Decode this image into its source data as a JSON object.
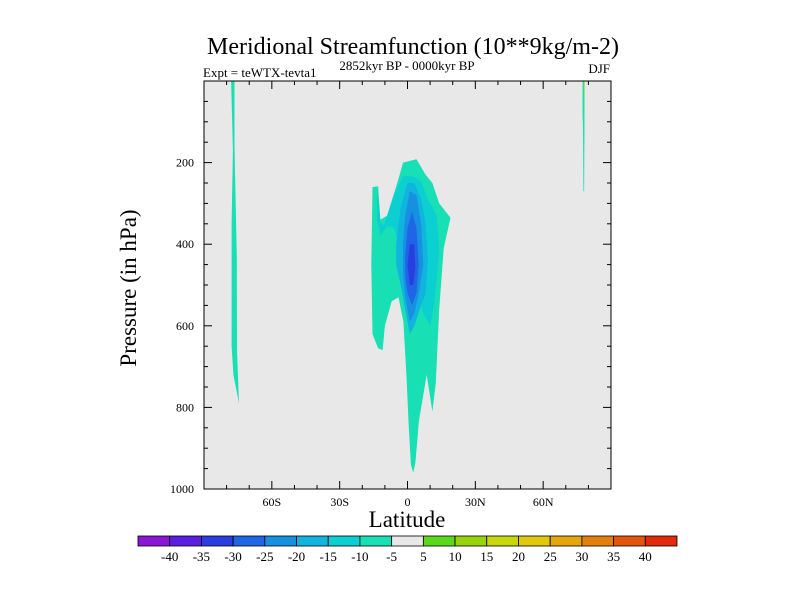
{
  "chart_data": {
    "type": "contour",
    "title": "Meridional Streamfunction (10**9kg/m-2)",
    "subtitle_left": "Expt = teWTX-tevta1",
    "subtitle_center": "2852kyr BP - 0000kyr BP",
    "subtitle_right": "DJF",
    "xlabel": "Latitude",
    "ylabel": "Pressure (in hPa)",
    "xlim": [
      -90,
      90
    ],
    "ylim": [
      0,
      1000
    ],
    "y_inverted": true,
    "x_ticks": [
      {
        "value": -60,
        "label": "60S"
      },
      {
        "value": -30,
        "label": "30S"
      },
      {
        "value": 0,
        "label": "0"
      },
      {
        "value": 30,
        "label": "30N"
      },
      {
        "value": 60,
        "label": "60N"
      }
    ],
    "y_ticks": [
      {
        "value": 200,
        "label": "200"
      },
      {
        "value": 400,
        "label": "400"
      },
      {
        "value": 600,
        "label": "600"
      },
      {
        "value": 800,
        "label": "800"
      },
      {
        "value": 1000,
        "label": "1000"
      }
    ],
    "background_color": "#e8e8e8",
    "colorbar": {
      "labels": [
        "-40",
        "-35",
        "-30",
        "-25",
        "-20",
        "-15",
        "-10",
        "-5",
        "5",
        "10",
        "15",
        "20",
        "25",
        "30",
        "35",
        "40"
      ],
      "colors": [
        "#8a17d6",
        "#5a1fe0",
        "#2a3ee0",
        "#1f66e6",
        "#1890e2",
        "#10b4de",
        "#0ccfd2",
        "#18e0b4",
        "#e8e8e8",
        "#5cd81c",
        "#98d40e",
        "#c8d60c",
        "#e2c80c",
        "#e4a60c",
        "#e2800e",
        "#e2560e",
        "#e22a0c"
      ]
    },
    "regions": [
      {
        "name": "band-minus5",
        "level": -5,
        "color": "#18e0b4",
        "points": [
          [
            -78,
            0
          ],
          [
            -76.5,
            0
          ],
          [
            -76.5,
            155
          ],
          [
            -76.3,
            220
          ],
          [
            -75.5,
            430
          ],
          [
            -75.4,
            660
          ],
          [
            -74.5,
            790
          ],
          [
            -77,
            720
          ],
          [
            -77.8,
            650
          ],
          [
            -77.8,
            350
          ],
          [
            -77.2,
            170
          ]
        ]
      },
      {
        "name": "band-minus5",
        "level": -5,
        "color": "#18e0b4",
        "points": [
          [
            -15.5,
            260
          ],
          [
            -13,
            258
          ],
          [
            -12,
            340
          ],
          [
            -9,
            330
          ],
          [
            -4,
            240
          ],
          [
            -2,
            200
          ],
          [
            4,
            192
          ],
          [
            8,
            230
          ],
          [
            11,
            250
          ],
          [
            14,
            300
          ],
          [
            19,
            335
          ],
          [
            16,
            410
          ],
          [
            14,
            560
          ],
          [
            12.5,
            740
          ],
          [
            11,
            810
          ],
          [
            8.5,
            720
          ],
          [
            5,
            835
          ],
          [
            4.5,
            870
          ],
          [
            3.5,
            935
          ],
          [
            2.5,
            960
          ],
          [
            1.5,
            940
          ],
          [
            0.5,
            840
          ],
          [
            -0.5,
            720
          ],
          [
            -1.8,
            590
          ],
          [
            -4,
            530
          ],
          [
            -7,
            540
          ],
          [
            -10,
            600
          ],
          [
            -11,
            660
          ],
          [
            -13,
            655
          ],
          [
            -15.5,
            620
          ],
          [
            -16,
            450
          ]
        ]
      },
      {
        "name": "band-minus10",
        "level": -10,
        "color": "#0ccfd2",
        "points": [
          [
            -13.5,
            265
          ],
          [
            -12,
            345
          ],
          [
            -10.5,
            355
          ],
          [
            -6,
            280
          ],
          [
            -2,
            232
          ],
          [
            3,
            235
          ],
          [
            6,
            245
          ],
          [
            9,
            290
          ],
          [
            13,
            330
          ],
          [
            14,
            420
          ],
          [
            12,
            540
          ],
          [
            10,
            600
          ],
          [
            7,
            570
          ],
          [
            3.5,
            520
          ],
          [
            1.5,
            535
          ],
          [
            0,
            500
          ],
          [
            -2,
            460
          ],
          [
            -4,
            400
          ],
          [
            -6,
            360
          ],
          [
            -9,
            355
          ],
          [
            -12,
            380
          ],
          [
            -13.5,
            340
          ]
        ]
      },
      {
        "name": "band-minus15",
        "level": -15,
        "color": "#10b4de",
        "points": [
          [
            -5,
            400
          ],
          [
            -3,
            310
          ],
          [
            0,
            250
          ],
          [
            3,
            250
          ],
          [
            6,
            290
          ],
          [
            8,
            350
          ],
          [
            9,
            440
          ],
          [
            8,
            520
          ],
          [
            6,
            550
          ],
          [
            3,
            600
          ],
          [
            1,
            620
          ],
          [
            -1,
            560
          ],
          [
            -3,
            500
          ],
          [
            -5,
            450
          ]
        ]
      },
      {
        "name": "band-minus20",
        "level": -20,
        "color": "#1890e2",
        "points": [
          [
            -2,
            400
          ],
          [
            -1,
            330
          ],
          [
            1,
            270
          ],
          [
            4,
            280
          ],
          [
            6,
            350
          ],
          [
            7,
            450
          ],
          [
            5,
            520
          ],
          [
            3,
            570
          ],
          [
            1,
            590
          ],
          [
            -1,
            530
          ],
          [
            -2,
            470
          ]
        ]
      },
      {
        "name": "band-minus25",
        "level": -25,
        "color": "#1f66e6",
        "points": [
          [
            -1,
            430
          ],
          [
            0,
            360
          ],
          [
            2,
            320
          ],
          [
            4,
            360
          ],
          [
            5,
            450
          ],
          [
            4,
            520
          ],
          [
            2,
            550
          ],
          [
            0,
            520
          ],
          [
            -1,
            480
          ]
        ]
      },
      {
        "name": "band-minus30",
        "level": -30,
        "color": "#2a3ee0",
        "points": [
          [
            0,
            450
          ],
          [
            1,
            400
          ],
          [
            3,
            400
          ],
          [
            3.5,
            460
          ],
          [
            2.5,
            500
          ],
          [
            1,
            500
          ]
        ]
      },
      {
        "name": "strip-positive-5",
        "level": 5,
        "color": "#5cd81c",
        "points": [
          [
            77.5,
            0
          ],
          [
            78.3,
            0
          ],
          [
            78.3,
            80
          ],
          [
            77.8,
            110
          ],
          [
            77.5,
            90
          ]
        ]
      },
      {
        "name": "strip-minus5-north",
        "level": -5,
        "color": "#18e0b4",
        "points": [
          [
            77.5,
            0
          ],
          [
            77.9,
            0
          ],
          [
            78.2,
            50
          ],
          [
            78.3,
            110
          ],
          [
            78.1,
            270
          ],
          [
            77.8,
            270
          ],
          [
            77.6,
            120
          ],
          [
            77.4,
            50
          ]
        ]
      }
    ]
  }
}
